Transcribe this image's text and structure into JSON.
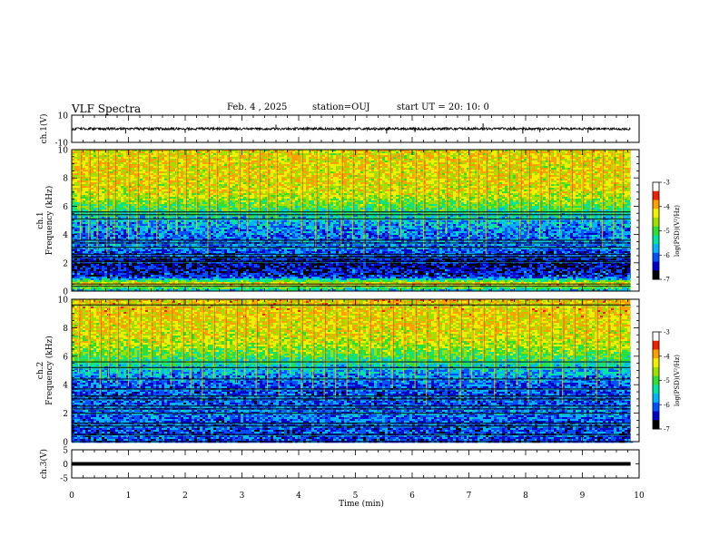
{
  "header": {
    "title": "VLF Spectra",
    "date": "Feb. 4 , 2025",
    "station": "station=OUJ",
    "start": "start UT =   20: 10: 0"
  },
  "chart_data": [
    {
      "type": "line",
      "name": "ch1-waveform",
      "ylabel": "ch.1(V)",
      "ylim": [
        -10,
        10
      ],
      "yticks": [
        "10",
        "-10"
      ],
      "x_range": [
        0,
        10
      ],
      "data_extent": [
        0,
        9.85
      ],
      "baseline": 0,
      "noise_amplitude": 0.9,
      "spikes": [
        {
          "x": 0.95,
          "y": -3.5
        },
        {
          "x": 2.0,
          "y": -3.0
        },
        {
          "x": 3.6,
          "y": 3.0
        },
        {
          "x": 5.55,
          "y": -3.5
        },
        {
          "x": 6.05,
          "y": -2.5
        },
        {
          "x": 7.25,
          "y": 4.0
        },
        {
          "x": 7.95,
          "y": -3.5
        },
        {
          "x": 8.25,
          "y": -2.5
        },
        {
          "x": 9.1,
          "y": -3.0
        }
      ],
      "color": "#000000"
    },
    {
      "type": "heatmap",
      "name": "ch1-spectrogram",
      "ylabel_top": "ch.1",
      "ylabel": "Frequency (kHz)",
      "ylim": [
        0,
        10
      ],
      "yticks": [
        0,
        2,
        4,
        6,
        8,
        10
      ],
      "x_range": [
        0,
        10
      ],
      "data_extent": [
        0,
        9.85
      ],
      "colorbar": {
        "label": "log(PSD)(V²/Hz)",
        "range": [
          -7,
          -3
        ],
        "ticks": [
          "-3",
          "-4",
          "-5",
          "-6",
          "-7"
        ],
        "colors": [
          "#000000",
          "#0000c8",
          "#0050ff",
          "#00b4ff",
          "#00e6a0",
          "#30e030",
          "#a0e000",
          "#f0f000",
          "#ffa000",
          "#f02000",
          "#ffffff"
        ]
      },
      "profile": [
        {
          "f": 0.0,
          "level": -5.8
        },
        {
          "f": 0.5,
          "level": -4.0
        },
        {
          "f": 1.0,
          "level": -6.3
        },
        {
          "f": 2.0,
          "level": -6.6
        },
        {
          "f": 3.0,
          "level": -6.0
        },
        {
          "f": 4.0,
          "level": -6.0
        },
        {
          "f": 5.0,
          "level": -5.7
        },
        {
          "f": 6.0,
          "level": -5.0
        },
        {
          "f": 7.0,
          "level": -4.4
        },
        {
          "f": 8.0,
          "level": -4.3
        },
        {
          "f": 10.0,
          "level": -4.3
        }
      ],
      "lines_khz": [
        0.35,
        0.5,
        2.1,
        2.4,
        2.6,
        3.1,
        3.4,
        3.6,
        5.1,
        5.4,
        5.6
      ],
      "events_min": [
        0.15,
        0.3,
        0.45,
        0.62,
        0.75,
        1.0,
        1.15,
        1.35,
        1.5,
        1.7,
        1.85,
        2.0,
        2.2,
        2.4,
        2.55,
        2.75,
        2.95,
        3.1,
        3.3,
        3.45,
        3.6,
        3.85,
        4.05,
        4.3,
        4.5,
        4.75,
        4.95,
        5.15,
        5.4,
        5.6,
        5.8,
        6.05,
        6.2,
        6.45,
        6.6,
        6.8,
        7.0,
        7.15,
        7.3,
        7.5,
        7.7,
        7.9,
        8.05,
        8.25,
        8.4,
        8.6,
        8.8,
        9.0,
        9.15,
        9.35,
        9.55,
        9.7
      ]
    },
    {
      "type": "heatmap",
      "name": "ch2-spectrogram",
      "ylabel_top": "ch.2",
      "ylabel": "Frequency (kHz)",
      "ylim": [
        0,
        10
      ],
      "yticks": [
        0,
        2,
        4,
        6,
        8,
        10
      ],
      "x_range": [
        0,
        10
      ],
      "data_extent": [
        0,
        9.85
      ],
      "colorbar": {
        "label": "log(PSD)(V²/Hz)",
        "range": [
          -7,
          -3
        ],
        "ticks": [
          "-3",
          "-4",
          "-5",
          "-6",
          "-7"
        ],
        "colors": [
          "#000000",
          "#0000c8",
          "#0050ff",
          "#00b4ff",
          "#00e6a0",
          "#30e030",
          "#a0e000",
          "#f0f000",
          "#ffa000",
          "#f02000",
          "#ffffff"
        ]
      },
      "profile": [
        {
          "f": 0.0,
          "level": -6.2
        },
        {
          "f": 1.0,
          "level": -6.2
        },
        {
          "f": 2.0,
          "level": -6.0
        },
        {
          "f": 3.0,
          "level": -6.2
        },
        {
          "f": 4.0,
          "level": -6.1
        },
        {
          "f": 5.0,
          "level": -5.7
        },
        {
          "f": 6.0,
          "level": -5.0
        },
        {
          "f": 7.0,
          "level": -4.5
        },
        {
          "f": 8.0,
          "level": -4.3
        },
        {
          "f": 10.0,
          "level": -4.2
        }
      ],
      "lines_khz": [
        0.5,
        1.1,
        1.3,
        2.0,
        2.3,
        2.5,
        3.0,
        3.2,
        3.7,
        4.4,
        5.2,
        5.6,
        9.6
      ],
      "events_min": [
        0.12,
        0.3,
        0.5,
        0.65,
        0.8,
        1.0,
        1.2,
        1.4,
        1.55,
        1.75,
        1.95,
        2.1,
        2.3,
        2.5,
        2.7,
        2.9,
        3.05,
        3.25,
        3.45,
        3.65,
        3.85,
        4.05,
        4.25,
        4.45,
        4.65,
        4.85,
        5.05,
        5.25,
        5.45,
        5.65,
        5.85,
        6.05,
        6.25,
        6.45,
        6.65,
        6.85,
        7.05,
        7.25,
        7.45,
        7.65,
        7.85,
        8.05,
        8.25,
        8.45,
        8.65,
        8.85,
        9.05,
        9.25,
        9.45,
        9.65
      ]
    },
    {
      "type": "line",
      "name": "ch3-waveform",
      "ylabel": "ch.3(V)",
      "ylim": [
        -5,
        5
      ],
      "yticks": [
        "5",
        "0",
        "-5"
      ],
      "x_range": [
        0,
        10
      ],
      "data_extent": [
        0,
        9.85
      ],
      "baseline": 0,
      "noise_amplitude": 0,
      "color": "#000000"
    }
  ],
  "xaxis": {
    "label": "Time (min)",
    "ticks": [
      "0",
      "1",
      "2",
      "3",
      "4",
      "5",
      "6",
      "7",
      "8",
      "9",
      "10"
    ]
  }
}
